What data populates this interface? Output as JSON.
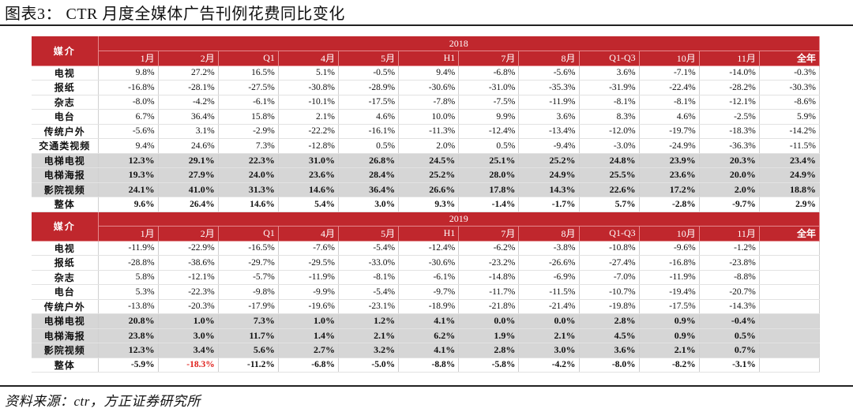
{
  "title": "图表3：  CTR 月度全媒体广告刊例花费同比变化",
  "source": "资料来源：ctr，方正证券研究所",
  "media_header": "媒介",
  "columns": [
    "1月",
    "2月",
    "Q1",
    "4月",
    "5月",
    "H1",
    "7月",
    "8月",
    "Q1-Q3",
    "10月",
    "11月",
    "全年"
  ],
  "accent_color": "#c0272d",
  "highlight_color": "#d6d6d6",
  "negative_emphasis_color": "#e0201b",
  "sections": [
    {
      "year": "2018",
      "rows": [
        {
          "name": "电视",
          "style": "normal",
          "values": [
            "9.8%",
            "27.2%",
            "16.5%",
            "5.1%",
            "-0.5%",
            "9.4%",
            "-6.8%",
            "-5.6%",
            "3.6%",
            "-7.1%",
            "-14.0%",
            "-0.3%"
          ]
        },
        {
          "name": "报纸",
          "style": "normal",
          "values": [
            "-16.8%",
            "-28.1%",
            "-27.5%",
            "-30.8%",
            "-28.9%",
            "-30.6%",
            "-31.0%",
            "-35.3%",
            "-31.9%",
            "-22.4%",
            "-28.2%",
            "-30.3%"
          ]
        },
        {
          "name": "杂志",
          "style": "normal",
          "values": [
            "-8.0%",
            "-4.2%",
            "-6.1%",
            "-10.1%",
            "-17.5%",
            "-7.8%",
            "-7.5%",
            "-11.9%",
            "-8.1%",
            "-8.1%",
            "-12.1%",
            "-8.6%"
          ]
        },
        {
          "name": "电台",
          "style": "normal",
          "values": [
            "6.7%",
            "36.4%",
            "15.8%",
            "2.1%",
            "4.6%",
            "10.0%",
            "9.9%",
            "3.6%",
            "8.3%",
            "4.6%",
            "-2.5%",
            "5.9%"
          ]
        },
        {
          "name": "传统户外",
          "style": "normal",
          "values": [
            "-5.6%",
            "3.1%",
            "-2.9%",
            "-22.2%",
            "-16.1%",
            "-11.3%",
            "-12.4%",
            "-13.4%",
            "-12.0%",
            "-19.7%",
            "-18.3%",
            "-14.2%"
          ]
        },
        {
          "name": "交通类视频",
          "style": "normal",
          "values": [
            "9.4%",
            "24.6%",
            "7.3%",
            "-12.8%",
            "0.5%",
            "2.0%",
            "0.5%",
            "-9.4%",
            "-3.0%",
            "-24.9%",
            "-36.3%",
            "-11.5%"
          ]
        },
        {
          "name": "电梯电视",
          "style": "highlight",
          "values": [
            "12.3%",
            "29.1%",
            "22.3%",
            "31.0%",
            "26.8%",
            "24.5%",
            "25.1%",
            "25.2%",
            "24.8%",
            "23.9%",
            "20.3%",
            "23.4%"
          ]
        },
        {
          "name": "电梯海报",
          "style": "highlight",
          "values": [
            "19.3%",
            "27.9%",
            "24.0%",
            "23.6%",
            "28.4%",
            "25.2%",
            "28.0%",
            "24.9%",
            "25.5%",
            "23.6%",
            "20.0%",
            "24.9%"
          ]
        },
        {
          "name": "影院视频",
          "style": "highlight",
          "values": [
            "24.1%",
            "41.0%",
            "31.3%",
            "14.6%",
            "36.4%",
            "26.6%",
            "17.8%",
            "14.3%",
            "22.6%",
            "17.2%",
            "2.0%",
            "18.8%"
          ]
        },
        {
          "name": "整体",
          "style": "total",
          "values": [
            "9.6%",
            "26.4%",
            "14.6%",
            "5.4%",
            "3.0%",
            "9.3%",
            "-1.4%",
            "-1.7%",
            "5.7%",
            "-2.8%",
            "-9.7%",
            "2.9%"
          ]
        }
      ]
    },
    {
      "year": "2019",
      "rows": [
        {
          "name": "电视",
          "style": "normal",
          "values": [
            "-11.9%",
            "-22.9%",
            "-16.5%",
            "-7.6%",
            "-5.4%",
            "-12.4%",
            "-6.2%",
            "-3.8%",
            "-10.8%",
            "-9.6%",
            "-1.2%",
            ""
          ]
        },
        {
          "name": "报纸",
          "style": "normal",
          "values": [
            "-28.8%",
            "-38.6%",
            "-29.7%",
            "-29.5%",
            "-33.0%",
            "-30.6%",
            "-23.2%",
            "-26.6%",
            "-27.4%",
            "-16.8%",
            "-23.8%",
            ""
          ]
        },
        {
          "name": "杂志",
          "style": "normal",
          "values": [
            "5.8%",
            "-12.1%",
            "-5.7%",
            "-11.9%",
            "-8.1%",
            "-6.1%",
            "-14.8%",
            "-6.9%",
            "-7.0%",
            "-11.9%",
            "-8.8%",
            ""
          ]
        },
        {
          "name": "电台",
          "style": "normal",
          "values": [
            "5.3%",
            "-22.3%",
            "-9.8%",
            "-9.9%",
            "-5.4%",
            "-9.7%",
            "-11.7%",
            "-11.5%",
            "-10.7%",
            "-19.4%",
            "-20.7%",
            ""
          ]
        },
        {
          "name": "传统户外",
          "style": "normal",
          "values": [
            "-13.8%",
            "-20.3%",
            "-17.9%",
            "-19.6%",
            "-23.1%",
            "-18.9%",
            "-21.8%",
            "-21.4%",
            "-19.8%",
            "-17.5%",
            "-14.3%",
            ""
          ]
        },
        {
          "name": "电梯电视",
          "style": "highlight",
          "values": [
            "20.8%",
            "1.0%",
            "7.3%",
            "1.0%",
            "1.2%",
            "4.1%",
            "0.0%",
            "0.0%",
            "2.8%",
            "0.9%",
            "-0.4%",
            ""
          ]
        },
        {
          "name": "电梯海报",
          "style": "highlight",
          "values": [
            "23.8%",
            "3.0%",
            "11.7%",
            "1.4%",
            "2.1%",
            "6.2%",
            "1.9%",
            "2.1%",
            "4.5%",
            "0.9%",
            "0.5%",
            ""
          ]
        },
        {
          "name": "影院视频",
          "style": "highlight",
          "values": [
            "12.3%",
            "3.4%",
            "5.6%",
            "2.7%",
            "3.2%",
            "4.1%",
            "2.8%",
            "3.0%",
            "3.6%",
            "2.1%",
            "0.7%",
            ""
          ]
        },
        {
          "name": "整体",
          "style": "total",
          "red_cells": [
            1
          ],
          "values": [
            "-5.9%",
            "-18.3%",
            "-11.2%",
            "-6.8%",
            "-5.0%",
            "-8.8%",
            "-5.8%",
            "-4.2%",
            "-8.0%",
            "-8.2%",
            "-3.1%",
            ""
          ]
        }
      ]
    }
  ]
}
